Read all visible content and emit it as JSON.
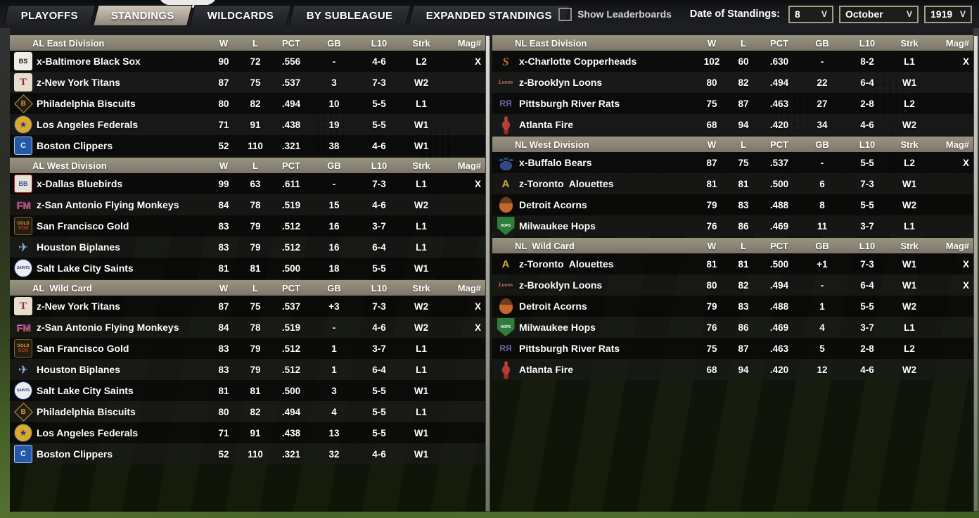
{
  "tabs": [
    {
      "label": "PLAYOFFS",
      "active": false
    },
    {
      "label": "STANDINGS",
      "active": true
    },
    {
      "label": "WILDCARDS",
      "active": false
    },
    {
      "label": "BY SUBLEAGUE",
      "active": false
    },
    {
      "label": "EXPANDED STANDINGS",
      "active": false
    }
  ],
  "controls": {
    "show_leaderboards": {
      "label": "Show Leaderboards",
      "checked": false
    },
    "date_label": "Date of Standings:",
    "day": "8",
    "month": "October",
    "year": "1919",
    "chevron": "V"
  },
  "table_columns": [
    "W",
    "L",
    "PCT",
    "GB",
    "L10",
    "Strk",
    "Mag#"
  ],
  "colors": {
    "division_header_bar": "#8a8475",
    "active_tab": "#a9a295",
    "dropdown_border": "#a79d86",
    "field_edge_green": "#48632a"
  },
  "logos": {
    "blacksox": {
      "shape": "square",
      "bg": "#efece3",
      "fg": "#161616",
      "text": "BS",
      "fs": 9
    },
    "titans": {
      "shape": "square",
      "bg": "#e8ddca",
      "fg": "#8c3049",
      "text": "T",
      "fs": 15,
      "serif": true
    },
    "biscuits": {
      "shape": "diamond",
      "bg": "#241e12",
      "bd": "#c79e43",
      "fg": "#c79e43",
      "text": "B",
      "fs": 10
    },
    "federals": {
      "shape": "circle",
      "bg": "#d9a82e",
      "bd": "#243b77",
      "fg": "#243b77",
      "text": "★",
      "fs": 12
    },
    "clippers": {
      "shape": "square",
      "bg": "#2458a8",
      "bd": "#b8c6dd",
      "fg": "#ececec",
      "text": "C",
      "fs": 11
    },
    "bluebirds": {
      "shape": "square",
      "bg": "#e7e3d9",
      "bd": "#b3302a",
      "fg": "#2c55a5",
      "text": "BB",
      "fs": 9
    },
    "monkeys": {
      "shape": "text",
      "fg": "#8233a5",
      "text": "FM",
      "fs": 14,
      "shadow": "#e8891d"
    },
    "goldsox": {
      "shape": "square",
      "bg": "#241c0e",
      "bd": "#7a6636",
      "fg": "#d3a23b",
      "text": "GOLD",
      "fs": 6,
      "text2": "SOX",
      "fg2": "#c23a32",
      "fs2": 7
    },
    "biplanes": {
      "shape": "text",
      "fg": "#8fb3dc",
      "text": "✈",
      "fs": 17
    },
    "saints": {
      "shape": "circle",
      "bg": "#ededed",
      "bd": "#1e3c8c",
      "fg": "#1e3c8c",
      "text": "SAINTS",
      "fs": 5
    },
    "copperheads": {
      "shape": "text",
      "fg": "#b5712e",
      "text": "S",
      "fs": 17,
      "serif": true,
      "italic": true
    },
    "loons": {
      "shape": "text",
      "fg": "#c0706e",
      "text": "Loons",
      "fs": 8,
      "serif": true,
      "italic": true
    },
    "riverrats": {
      "shape": "text",
      "fg": "#7468ab",
      "text": "RЯ",
      "fs": 12
    },
    "fire": {
      "shape": "ant"
    },
    "bears": {
      "shape": "paw"
    },
    "alouettes": {
      "shape": "text",
      "fg": "#c9a94e",
      "text": "A",
      "fs": 15
    },
    "acorns": {
      "shape": "acorn"
    },
    "hops": {
      "shape": "plate",
      "bg": "#2f7d3a",
      "fg": "#ffffff",
      "text": "HOPS",
      "fs": 5
    }
  },
  "left_column": {
    "sections": [
      {
        "title": "AL East Division",
        "teams": [
          {
            "name": "x-Baltimore Black Sox",
            "logo": "blacksox",
            "w": "90",
            "l": "72",
            "pct": ".556",
            "gb": "-",
            "l10": "4-6",
            "strk": "L2",
            "mag": "X"
          },
          {
            "name": "z-New York Titans",
            "logo": "titans",
            "w": "87",
            "l": "75",
            "pct": ".537",
            "gb": "3",
            "l10": "7-3",
            "strk": "W2",
            "mag": ""
          },
          {
            "name": "Philadelphia Biscuits",
            "logo": "biscuits",
            "w": "80",
            "l": "82",
            "pct": ".494",
            "gb": "10",
            "l10": "5-5",
            "strk": "L1",
            "mag": ""
          },
          {
            "name": "Los Angeles Federals",
            "logo": "federals",
            "w": "71",
            "l": "91",
            "pct": ".438",
            "gb": "19",
            "l10": "5-5",
            "strk": "W1",
            "mag": ""
          },
          {
            "name": "Boston Clippers",
            "logo": "clippers",
            "w": "52",
            "l": "110",
            "pct": ".321",
            "gb": "38",
            "l10": "4-6",
            "strk": "W1",
            "mag": ""
          }
        ]
      },
      {
        "title": "AL West Division",
        "teams": [
          {
            "name": "x-Dallas Bluebirds",
            "logo": "bluebirds",
            "w": "99",
            "l": "63",
            "pct": ".611",
            "gb": "-",
            "l10": "7-3",
            "strk": "L1",
            "mag": "X"
          },
          {
            "name": "z-San Antonio Flying Monkeys",
            "logo": "monkeys",
            "w": "84",
            "l": "78",
            "pct": ".519",
            "gb": "15",
            "l10": "4-6",
            "strk": "W2",
            "mag": ""
          },
          {
            "name": "San Francisco Gold",
            "logo": "goldsox",
            "w": "83",
            "l": "79",
            "pct": ".512",
            "gb": "16",
            "l10": "3-7",
            "strk": "L1",
            "mag": ""
          },
          {
            "name": "Houston Biplanes",
            "logo": "biplanes",
            "w": "83",
            "l": "79",
            "pct": ".512",
            "gb": "16",
            "l10": "6-4",
            "strk": "L1",
            "mag": ""
          },
          {
            "name": "Salt Lake City Saints",
            "logo": "saints",
            "w": "81",
            "l": "81",
            "pct": ".500",
            "gb": "18",
            "l10": "5-5",
            "strk": "W1",
            "mag": ""
          }
        ]
      },
      {
        "title": "AL  Wild Card",
        "teams": [
          {
            "name": "z-New York Titans",
            "logo": "titans",
            "w": "87",
            "l": "75",
            "pct": ".537",
            "gb": "+3",
            "l10": "7-3",
            "strk": "W2",
            "mag": "X"
          },
          {
            "name": "z-San Antonio Flying Monkeys",
            "logo": "monkeys",
            "w": "84",
            "l": "78",
            "pct": ".519",
            "gb": "-",
            "l10": "4-6",
            "strk": "W2",
            "mag": "X"
          },
          {
            "name": "San Francisco Gold",
            "logo": "goldsox",
            "w": "83",
            "l": "79",
            "pct": ".512",
            "gb": "1",
            "l10": "3-7",
            "strk": "L1",
            "mag": ""
          },
          {
            "name": "Houston Biplanes",
            "logo": "biplanes",
            "w": "83",
            "l": "79",
            "pct": ".512",
            "gb": "1",
            "l10": "6-4",
            "strk": "L1",
            "mag": ""
          },
          {
            "name": "Salt Lake City Saints",
            "logo": "saints",
            "w": "81",
            "l": "81",
            "pct": ".500",
            "gb": "3",
            "l10": "5-5",
            "strk": "W1",
            "mag": ""
          },
          {
            "name": "Philadelphia Biscuits",
            "logo": "biscuits",
            "w": "80",
            "l": "82",
            "pct": ".494",
            "gb": "4",
            "l10": "5-5",
            "strk": "L1",
            "mag": ""
          },
          {
            "name": "Los Angeles Federals",
            "logo": "federals",
            "w": "71",
            "l": "91",
            "pct": ".438",
            "gb": "13",
            "l10": "5-5",
            "strk": "W1",
            "mag": ""
          },
          {
            "name": "Boston Clippers",
            "logo": "clippers",
            "w": "52",
            "l": "110",
            "pct": ".321",
            "gb": "32",
            "l10": "4-6",
            "strk": "W1",
            "mag": ""
          }
        ]
      }
    ]
  },
  "right_column": {
    "sections": [
      {
        "title": "NL East Division",
        "teams": [
          {
            "name": "x-Charlotte Copperheads",
            "logo": "copperheads",
            "w": "102",
            "l": "60",
            "pct": ".630",
            "gb": "-",
            "l10": "8-2",
            "strk": "L1",
            "mag": "X"
          },
          {
            "name": "z-Brooklyn Loons",
            "logo": "loons",
            "w": "80",
            "l": "82",
            "pct": ".494",
            "gb": "22",
            "l10": "6-4",
            "strk": "W1",
            "mag": ""
          },
          {
            "name": "Pittsburgh River Rats",
            "logo": "riverrats",
            "w": "75",
            "l": "87",
            "pct": ".463",
            "gb": "27",
            "l10": "2-8",
            "strk": "L2",
            "mag": ""
          },
          {
            "name": "Atlanta Fire",
            "logo": "fire",
            "w": "68",
            "l": "94",
            "pct": ".420",
            "gb": "34",
            "l10": "4-6",
            "strk": "W2",
            "mag": ""
          }
        ]
      },
      {
        "title": "NL West Division",
        "teams": [
          {
            "name": "x-Buffalo Bears",
            "logo": "bears",
            "w": "87",
            "l": "75",
            "pct": ".537",
            "gb": "-",
            "l10": "5-5",
            "strk": "L2",
            "mag": "X"
          },
          {
            "name": "z-Toronto  Alouettes",
            "logo": "alouettes",
            "w": "81",
            "l": "81",
            "pct": ".500",
            "gb": "6",
            "l10": "7-3",
            "strk": "W1",
            "mag": ""
          },
          {
            "name": "Detroit Acorns",
            "logo": "acorns",
            "w": "79",
            "l": "83",
            "pct": ".488",
            "gb": "8",
            "l10": "5-5",
            "strk": "W2",
            "mag": ""
          },
          {
            "name": "Milwaukee Hops",
            "logo": "hops",
            "w": "76",
            "l": "86",
            "pct": ".469",
            "gb": "11",
            "l10": "3-7",
            "strk": "L1",
            "mag": ""
          }
        ]
      },
      {
        "title": "NL  Wild Card",
        "teams": [
          {
            "name": "z-Toronto  Alouettes",
            "logo": "alouettes",
            "w": "81",
            "l": "81",
            "pct": ".500",
            "gb": "+1",
            "l10": "7-3",
            "strk": "W1",
            "mag": "X"
          },
          {
            "name": "z-Brooklyn Loons",
            "logo": "loons",
            "w": "80",
            "l": "82",
            "pct": ".494",
            "gb": "-",
            "l10": "6-4",
            "strk": "W1",
            "mag": "X"
          },
          {
            "name": "Detroit Acorns",
            "logo": "acorns",
            "w": "79",
            "l": "83",
            "pct": ".488",
            "gb": "1",
            "l10": "5-5",
            "strk": "W2",
            "mag": ""
          },
          {
            "name": "Milwaukee Hops",
            "logo": "hops",
            "w": "76",
            "l": "86",
            "pct": ".469",
            "gb": "4",
            "l10": "3-7",
            "strk": "L1",
            "mag": ""
          },
          {
            "name": "Pittsburgh River Rats",
            "logo": "riverrats",
            "w": "75",
            "l": "87",
            "pct": ".463",
            "gb": "5",
            "l10": "2-8",
            "strk": "L2",
            "mag": ""
          },
          {
            "name": "Atlanta Fire",
            "logo": "fire",
            "w": "68",
            "l": "94",
            "pct": ".420",
            "gb": "12",
            "l10": "4-6",
            "strk": "W2",
            "mag": ""
          }
        ]
      }
    ]
  }
}
